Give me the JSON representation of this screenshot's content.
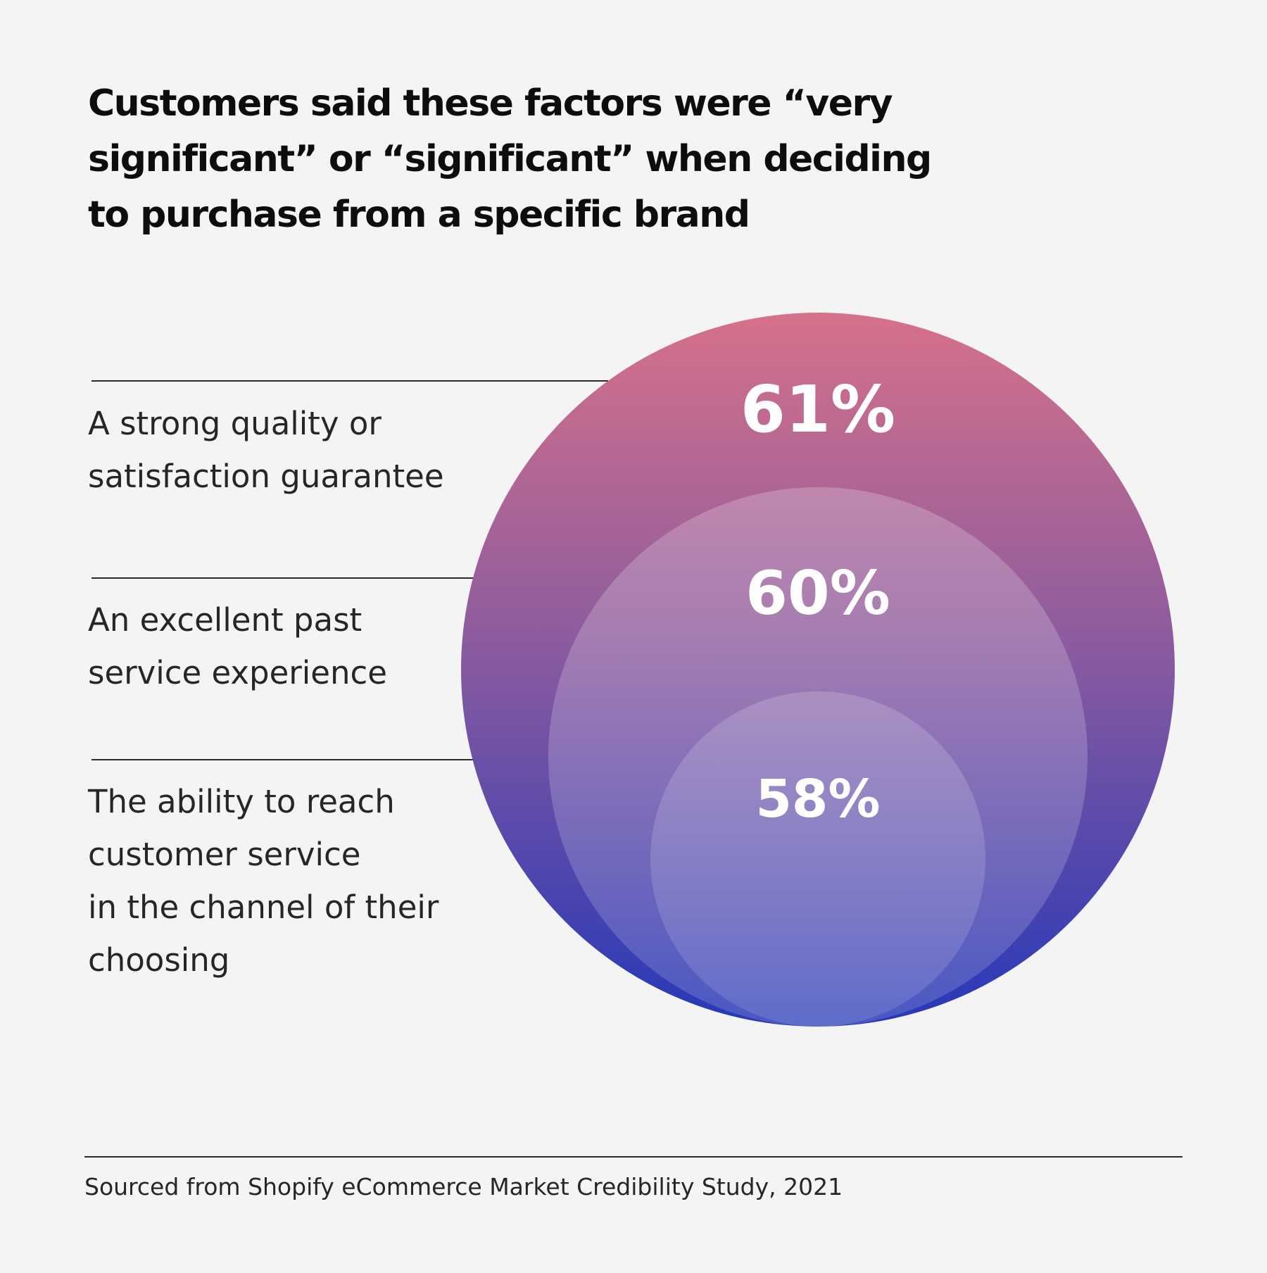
{
  "chart_data": {
    "type": "nested-circles",
    "title": "Customers said these factors were  “very significant” or “significant” when deciding to purchase from a specific brand",
    "categories": [
      "A strong quality or\nsatisfaction guarantee",
      "An excellent past\nservice experience",
      "The ability to reach\ncustomer service\nin the channel of their\nchoosing"
    ],
    "values": [
      61,
      60,
      58
    ],
    "value_labels": [
      "61%",
      "60%",
      "58%"
    ],
    "unit": "%",
    "source": "Sourced from Shopify eCommerce Market Credibility Study, 2021"
  },
  "colors": {
    "background": "#f4f4f4",
    "outer_top": "#d6718a",
    "outer_mid": "#8e5c9e",
    "outer_bottom": "#2638b8",
    "inner_overlay": "#ffffff"
  }
}
